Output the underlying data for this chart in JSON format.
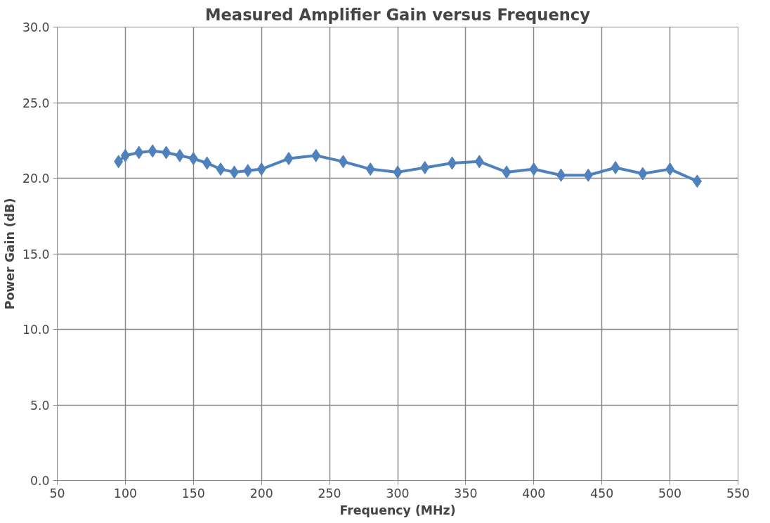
{
  "chart_data": {
    "type": "line",
    "title": "Measured Amplifier Gain versus Frequency",
    "xlabel": "Frequency (MHz)",
    "ylabel": "Power Gain (dB)",
    "x": [
      95,
      100,
      110,
      120,
      130,
      140,
      150,
      160,
      170,
      180,
      190,
      200,
      220,
      240,
      260,
      280,
      300,
      320,
      340,
      360,
      380,
      400,
      420,
      440,
      460,
      480,
      500,
      520
    ],
    "series": [
      {
        "color": "#4f81bd",
        "values": [
          21.1,
          21.5,
          21.7,
          21.8,
          21.7,
          21.5,
          21.3,
          21.0,
          20.6,
          20.4,
          20.5,
          20.6,
          21.3,
          21.5,
          21.1,
          20.6,
          20.4,
          20.7,
          21.0,
          21.1,
          20.4,
          20.6,
          20.2,
          20.2,
          20.7,
          20.3,
          20.6,
          19.8
        ]
      }
    ],
    "xlim": [
      50,
      550
    ],
    "ylim": [
      0,
      30
    ],
    "xticks": [
      50,
      100,
      150,
      200,
      250,
      300,
      350,
      400,
      450,
      500,
      550
    ],
    "yticks": [
      {
        "value": 0,
        "label": "0.0"
      },
      {
        "value": 5,
        "label": "5.0"
      },
      {
        "value": 10,
        "label": "10.0"
      },
      {
        "value": 15,
        "label": "15.0"
      },
      {
        "value": 20,
        "label": "20.0"
      },
      {
        "value": 25,
        "label": "25.0"
      },
      {
        "value": 30,
        "label": "30.0"
      }
    ],
    "grid": true,
    "marker": "diamond",
    "line_style": "solid"
  }
}
